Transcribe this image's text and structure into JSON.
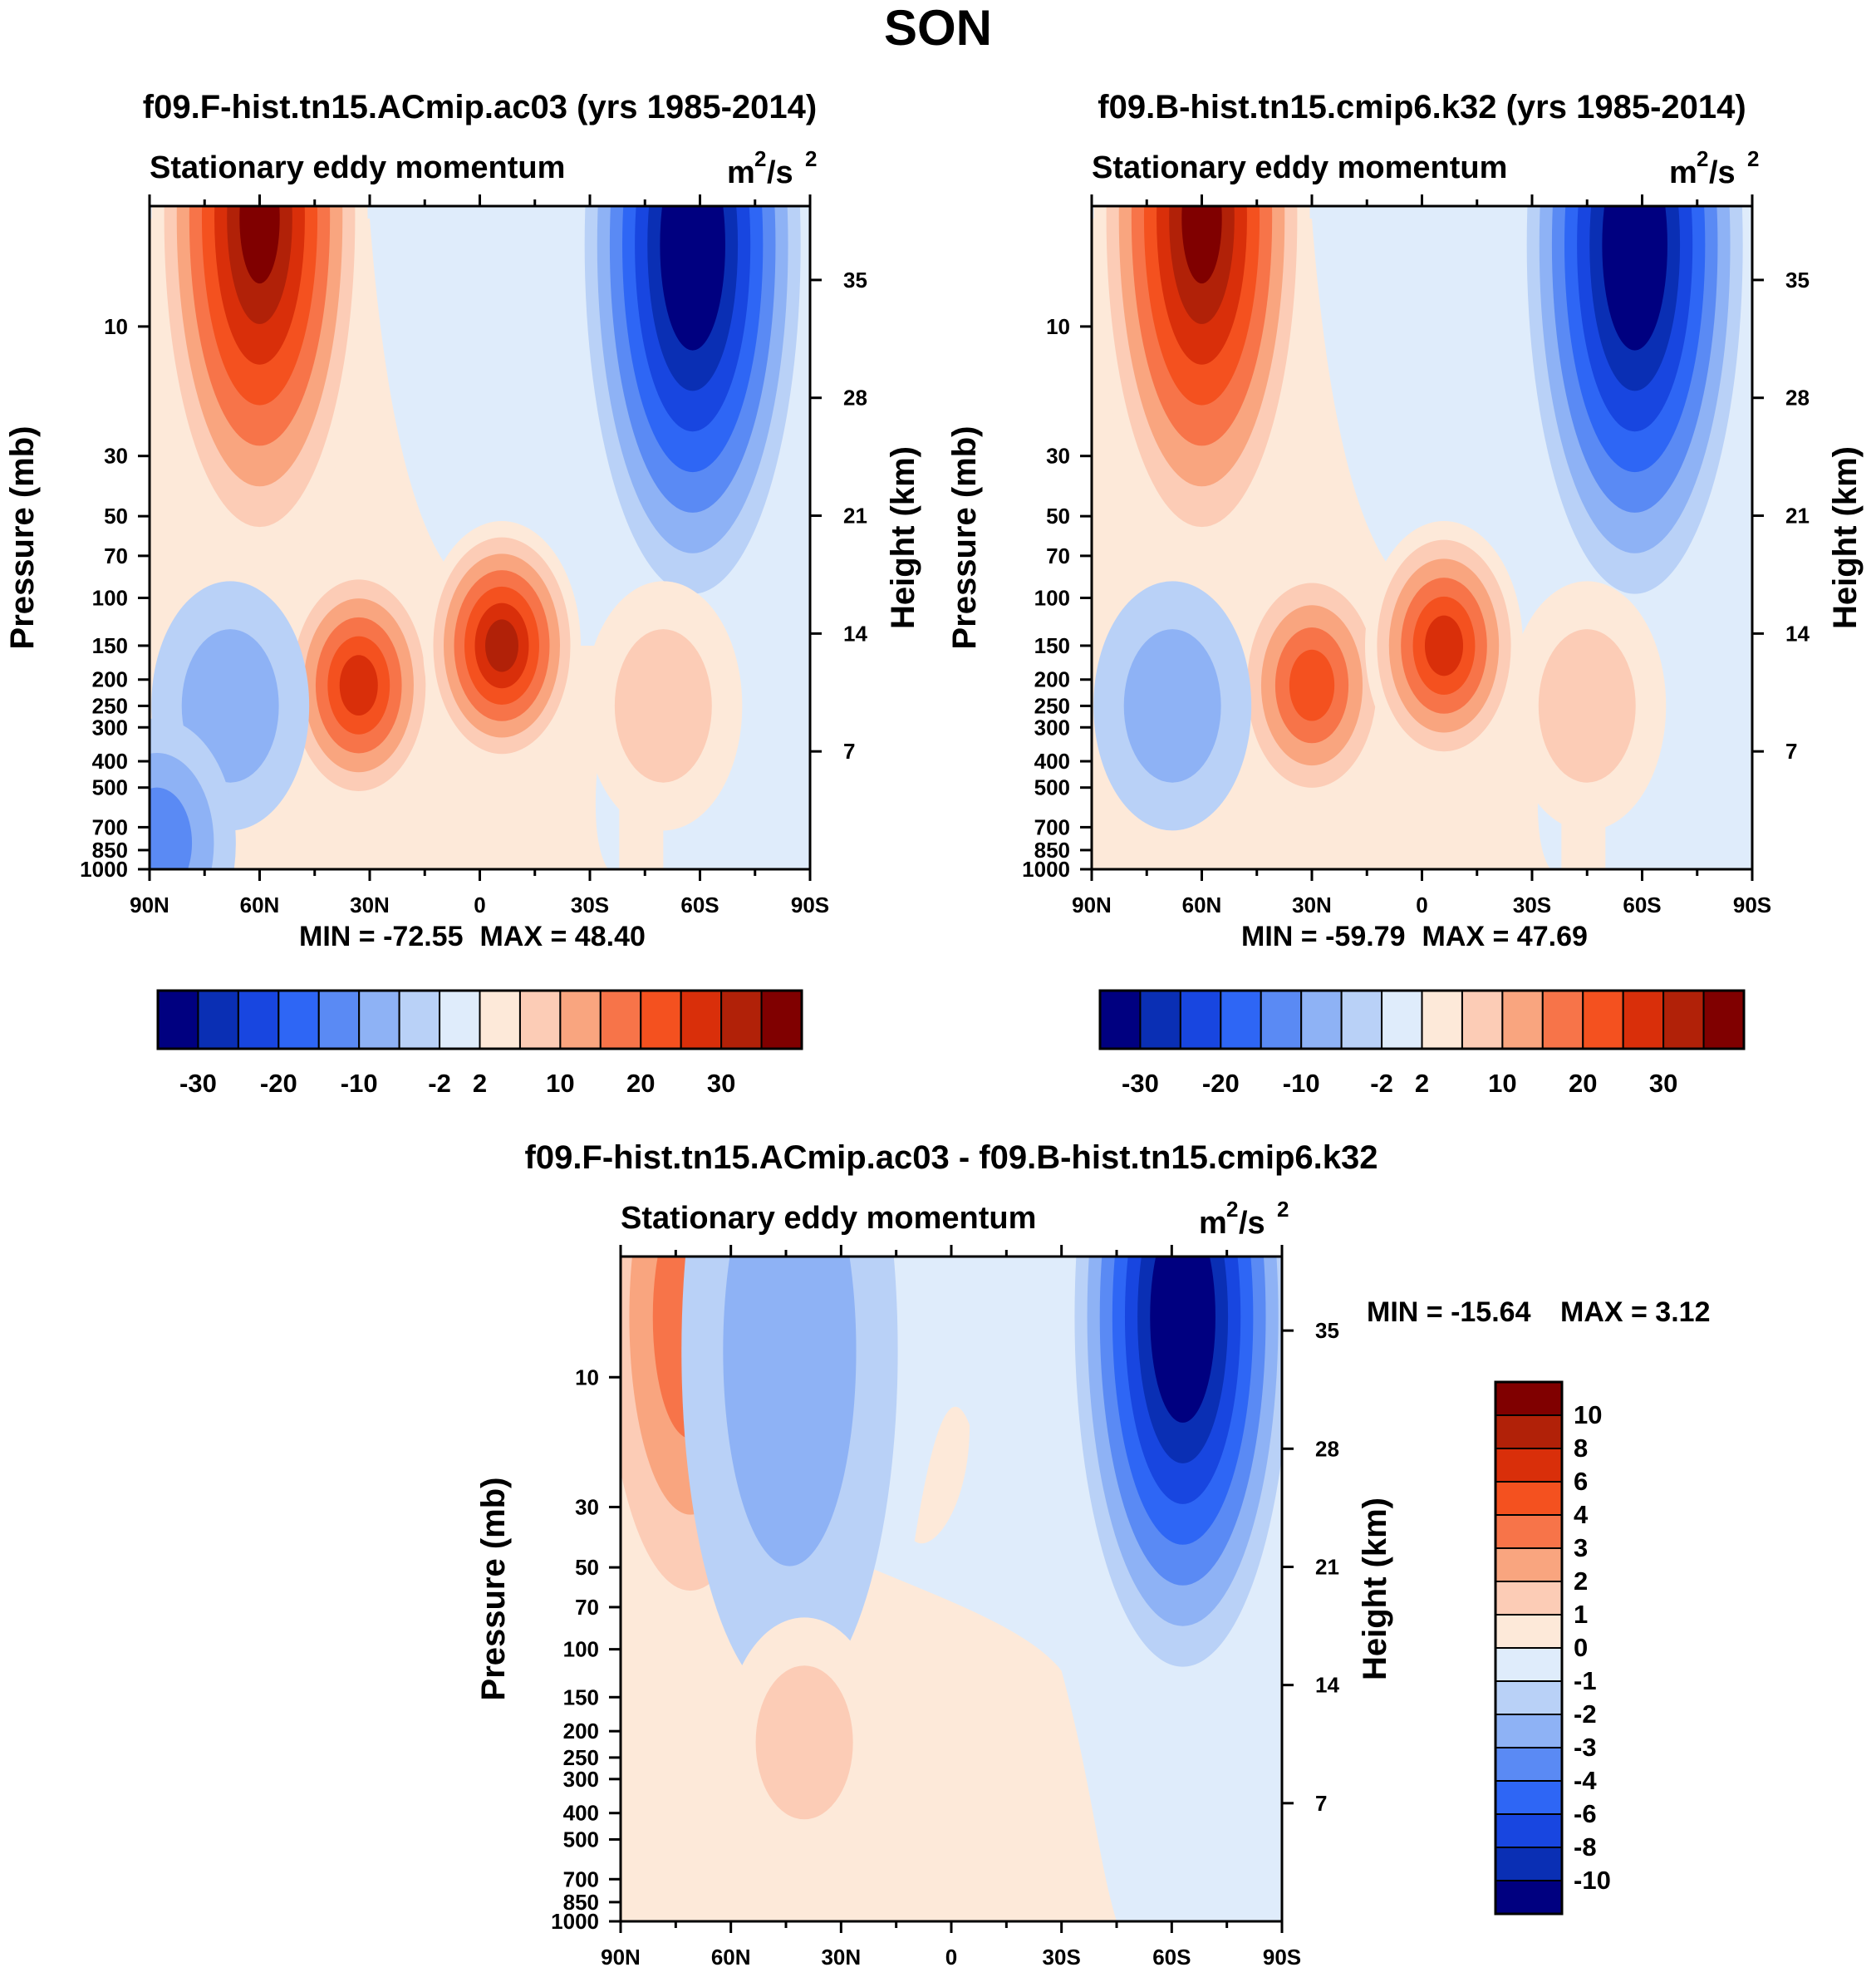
{
  "figure": {
    "title": "SON",
    "palette": {
      "diverging": [
        "#000080",
        "#0a2fb4",
        "#1846e0",
        "#2e66f5",
        "#5a8af4",
        "#8eb2f5",
        "#b9d1f7",
        "#dfecfb",
        "#fde9d9",
        "#fcccb6",
        "#f9a57f",
        "#f77449",
        "#f4511f",
        "#d92f0a",
        "#b12108",
        "#800000"
      ],
      "zero_neg": "#dfecfb",
      "zero_pos": "#fde9d9"
    },
    "colorbar_top": {
      "labels": [
        "-30",
        "-20",
        "-10",
        "-2",
        "2",
        "10",
        "20",
        "30"
      ]
    },
    "colorbar_diff": {
      "labels": [
        "10",
        "8",
        "6",
        "4",
        "3",
        "2",
        "1",
        "0",
        "-1",
        "-2",
        "-3",
        "-4",
        "-6",
        "-8",
        "-10"
      ]
    }
  },
  "chart_data": [
    {
      "type": "contour",
      "title": "f09.F-hist.tn15.ACmip.ac03 (yrs 1985-2014)",
      "subtitle_left": "Stationary eddy momentum",
      "units_prefix": "m",
      "units_mid": "/s",
      "units_exp": "2",
      "xlabel": "",
      "ylabel": "Pressure (mb)",
      "ylabel_right": "Height (km)",
      "x_tick_labels": [
        "90N",
        "60N",
        "30N",
        "0",
        "30S",
        "60S",
        "90S"
      ],
      "x_values": [
        90,
        60,
        30,
        0,
        -30,
        -60,
        -90
      ],
      "y_tick_labels": [
        "10",
        "30",
        "50",
        "70",
        "100",
        "150",
        "200",
        "250",
        "300",
        "400",
        "500",
        "700",
        "850",
        "1000"
      ],
      "y_values": [
        10,
        30,
        50,
        70,
        100,
        150,
        200,
        250,
        300,
        400,
        500,
        700,
        850,
        1000
      ],
      "height_tick_labels": [
        "35",
        "28",
        "21",
        "14",
        "7"
      ],
      "height_values": [
        35,
        28,
        21,
        14,
        7
      ],
      "ylim": [
        1000,
        3.6
      ],
      "min_label": "MIN = -72.55",
      "max_label": "MAX =  48.40",
      "contour_levels": [
        -30,
        -25,
        -20,
        -15,
        -10,
        -6,
        -2,
        0,
        2,
        6,
        10,
        15,
        20,
        25,
        30
      ],
      "features": [
        {
          "lat": 60,
          "p": 4,
          "value": 48.4
        },
        {
          "lat": -58,
          "p": 5,
          "value": -72.55
        },
        {
          "lat": 33,
          "p": 210,
          "value": 22
        },
        {
          "lat": -6,
          "p": 150,
          "value": 28
        },
        {
          "lat": 68,
          "p": 250,
          "value": -4
        },
        {
          "lat": -50,
          "p": 250,
          "value": 3
        },
        {
          "lat": 88,
          "p": 800,
          "value": -9
        }
      ]
    },
    {
      "type": "contour",
      "title": "f09.B-hist.tn15.cmip6.k32 (yrs 1985-2014)",
      "subtitle_left": "Stationary eddy momentum",
      "units_prefix": "m",
      "units_mid": "/s",
      "units_exp": "2",
      "xlabel": "",
      "ylabel": "Pressure (mb)",
      "ylabel_right": "Height (km)",
      "x_tick_labels": [
        "90N",
        "60N",
        "30N",
        "0",
        "30S",
        "60S",
        "90S"
      ],
      "x_values": [
        90,
        60,
        30,
        0,
        -30,
        -60,
        -90
      ],
      "y_tick_labels": [
        "10",
        "30",
        "50",
        "70",
        "100",
        "150",
        "200",
        "250",
        "300",
        "400",
        "500",
        "700",
        "850",
        "1000"
      ],
      "y_values": [
        10,
        30,
        50,
        70,
        100,
        150,
        200,
        250,
        300,
        400,
        500,
        700,
        850,
        1000
      ],
      "height_tick_labels": [
        "35",
        "28",
        "21",
        "14",
        "7"
      ],
      "height_values": [
        35,
        28,
        21,
        14,
        7
      ],
      "ylim": [
        1000,
        3.6
      ],
      "min_label": "MIN = -59.79",
      "max_label": "MAX =  47.69",
      "contour_levels": [
        -30,
        -25,
        -20,
        -15,
        -10,
        -6,
        -2,
        0,
        2,
        6,
        10,
        15,
        20,
        25,
        30
      ],
      "features": [
        {
          "lat": 60,
          "p": 4,
          "value": 47.69
        },
        {
          "lat": -58,
          "p": 5,
          "value": -59.79
        },
        {
          "lat": 30,
          "p": 210,
          "value": 19
        },
        {
          "lat": -6,
          "p": 150,
          "value": 23
        },
        {
          "lat": 68,
          "p": 250,
          "value": -4
        },
        {
          "lat": -45,
          "p": 250,
          "value": 3
        }
      ]
    },
    {
      "type": "contour",
      "title": "f09.F-hist.tn15.ACmip.ac03 - f09.B-hist.tn15.cmip6.k32",
      "subtitle_left": "Stationary eddy momentum",
      "units_prefix": "m",
      "units_mid": "/s",
      "units_exp": "2",
      "xlabel": "",
      "ylabel": "Pressure (mb)",
      "ylabel_right": "Height (km)",
      "x_tick_labels": [
        "90N",
        "60N",
        "30N",
        "0",
        "30S",
        "60S",
        "90S"
      ],
      "x_values": [
        90,
        60,
        30,
        0,
        -30,
        -60,
        -90
      ],
      "y_tick_labels": [
        "10",
        "30",
        "50",
        "70",
        "100",
        "150",
        "200",
        "250",
        "300",
        "400",
        "500",
        "700",
        "850",
        "1000"
      ],
      "y_values": [
        10,
        30,
        50,
        70,
        100,
        150,
        200,
        250,
        300,
        400,
        500,
        700,
        850,
        1000
      ],
      "height_tick_labels": [
        "35",
        "28",
        "21",
        "14",
        "7"
      ],
      "height_values": [
        35,
        28,
        21,
        14,
        7
      ],
      "ylim": [
        1000,
        3.6
      ],
      "min_label": "MIN = -15.64",
      "max_label": "MAX =    3.12",
      "contour_levels": [
        -10,
        -8,
        -6,
        -4,
        -3,
        -2,
        -1,
        0,
        1,
        2,
        3,
        4,
        6,
        8,
        10
      ],
      "features": [
        {
          "lat": 71,
          "p": 6,
          "value": 3.12
        },
        {
          "lat": 44,
          "p": 8,
          "value": -1.5
        },
        {
          "lat": -63,
          "p": 6,
          "value": -15.64
        },
        {
          "lat": 40,
          "p": 220,
          "value": 1.2
        }
      ]
    }
  ]
}
